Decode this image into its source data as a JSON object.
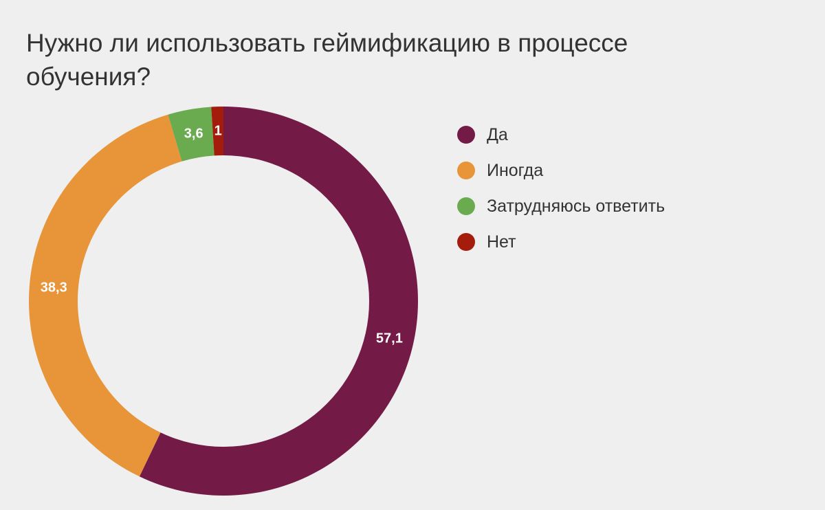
{
  "chart_data": {
    "type": "pie",
    "title": "Нужно ли использовать геймификацию в процессе обучения?",
    "legend_position": "right",
    "categories": [
      "Да",
      "Иногда",
      "Затрудняюсь ответить",
      "Нет"
    ],
    "values": [
      57.1,
      38.3,
      3.6,
      1
    ],
    "data_labels": [
      "57,1",
      "38,3",
      "3,6",
      "1"
    ],
    "colors": [
      "#731a46",
      "#e8953a",
      "#6aab4f",
      "#a31c0c"
    ]
  }
}
